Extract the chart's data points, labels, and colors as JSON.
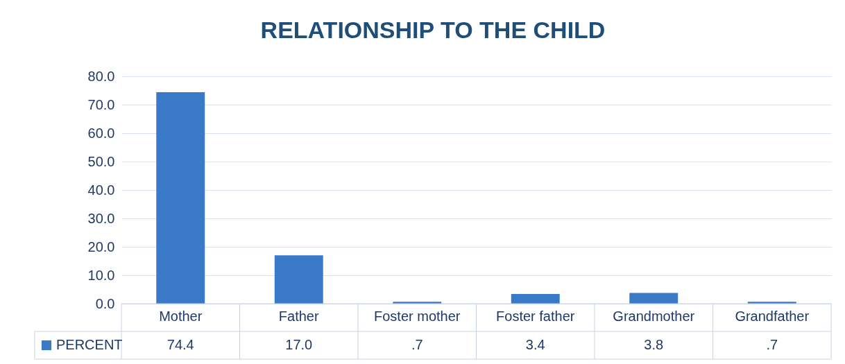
{
  "chart_data": {
    "type": "bar",
    "title": "RELATIONSHIP TO THE CHILD",
    "categories": [
      "Mother",
      "Father",
      "Foster mother",
      "Foster father",
      "Grandmother",
      "Grandfather"
    ],
    "series": [
      {
        "name": "PERCENT",
        "color": "#3a78c8",
        "values": [
          74.4,
          17.0,
          0.7,
          3.4,
          3.8,
          0.7
        ],
        "value_labels": [
          "74.4",
          "17.0",
          ".7",
          "3.4",
          "3.8",
          ".7"
        ]
      }
    ],
    "ylim": [
      0,
      80
    ],
    "yticks": [
      {
        "value": 0,
        "label": "0.0"
      },
      {
        "value": 10,
        "label": "10.0"
      },
      {
        "value": 20,
        "label": "20.0"
      },
      {
        "value": 30,
        "label": "30.0"
      },
      {
        "value": 40,
        "label": "40.0"
      },
      {
        "value": 50,
        "label": "50.0"
      },
      {
        "value": 60,
        "label": "60.0"
      },
      {
        "value": 70,
        "label": "70.0"
      },
      {
        "value": 80,
        "label": "80.0"
      }
    ],
    "grid": "y",
    "legend": "bottom left"
  }
}
